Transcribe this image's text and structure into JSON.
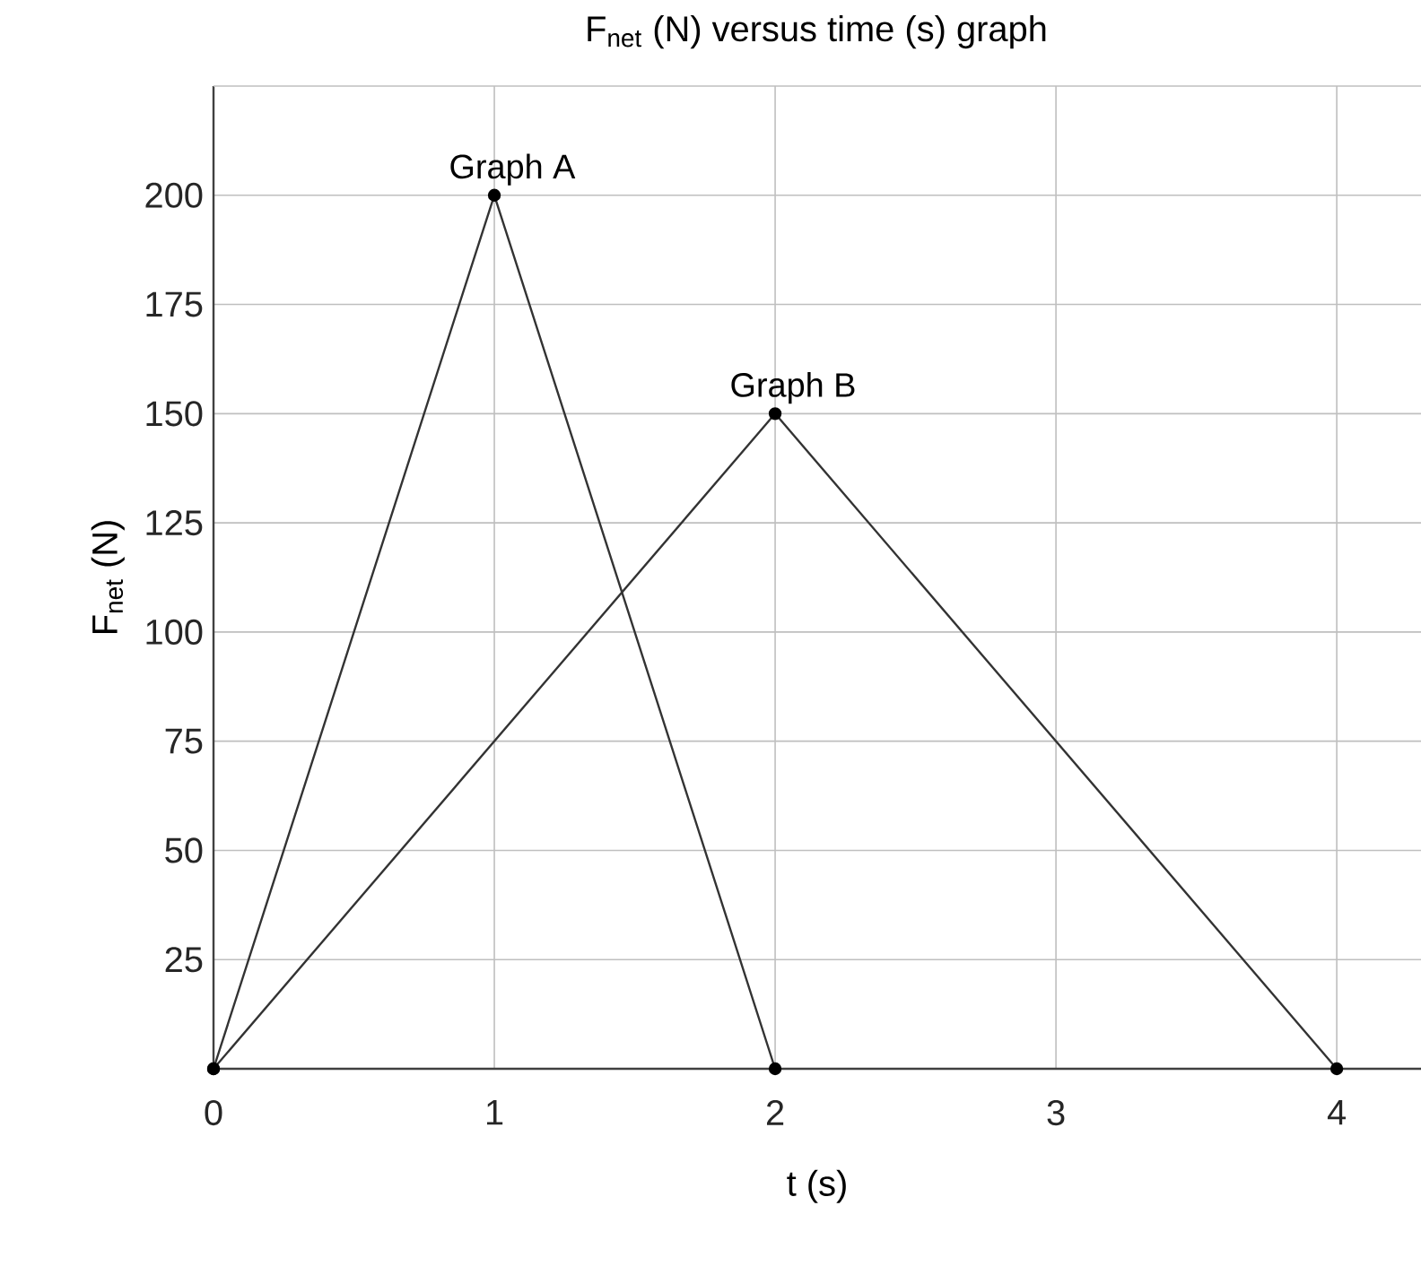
{
  "chart_data": {
    "type": "line",
    "title": "F$_{net}$ (N) versus time (s) graph",
    "xlabel": "t (s)",
    "ylabel": "F$_{net}$ (N)",
    "series": [
      {
        "name": "Graph A",
        "color": "#333333",
        "x": [
          0,
          1,
          2
        ],
        "values": [
          0,
          200,
          0
        ]
      },
      {
        "name": "Graph B",
        "color": "#333333",
        "x": [
          0,
          2,
          4
        ],
        "values": [
          0,
          150,
          0
        ]
      }
    ],
    "xlim": [
      0,
      4.3
    ],
    "ylim": [
      0,
      225
    ],
    "xticks": [
      0,
      1,
      2,
      3,
      4
    ],
    "yticks": [
      25,
      50,
      75,
      100,
      125,
      150,
      175,
      200
    ],
    "grid": true,
    "legend": false,
    "marker": "circle",
    "line_style": "solid"
  }
}
